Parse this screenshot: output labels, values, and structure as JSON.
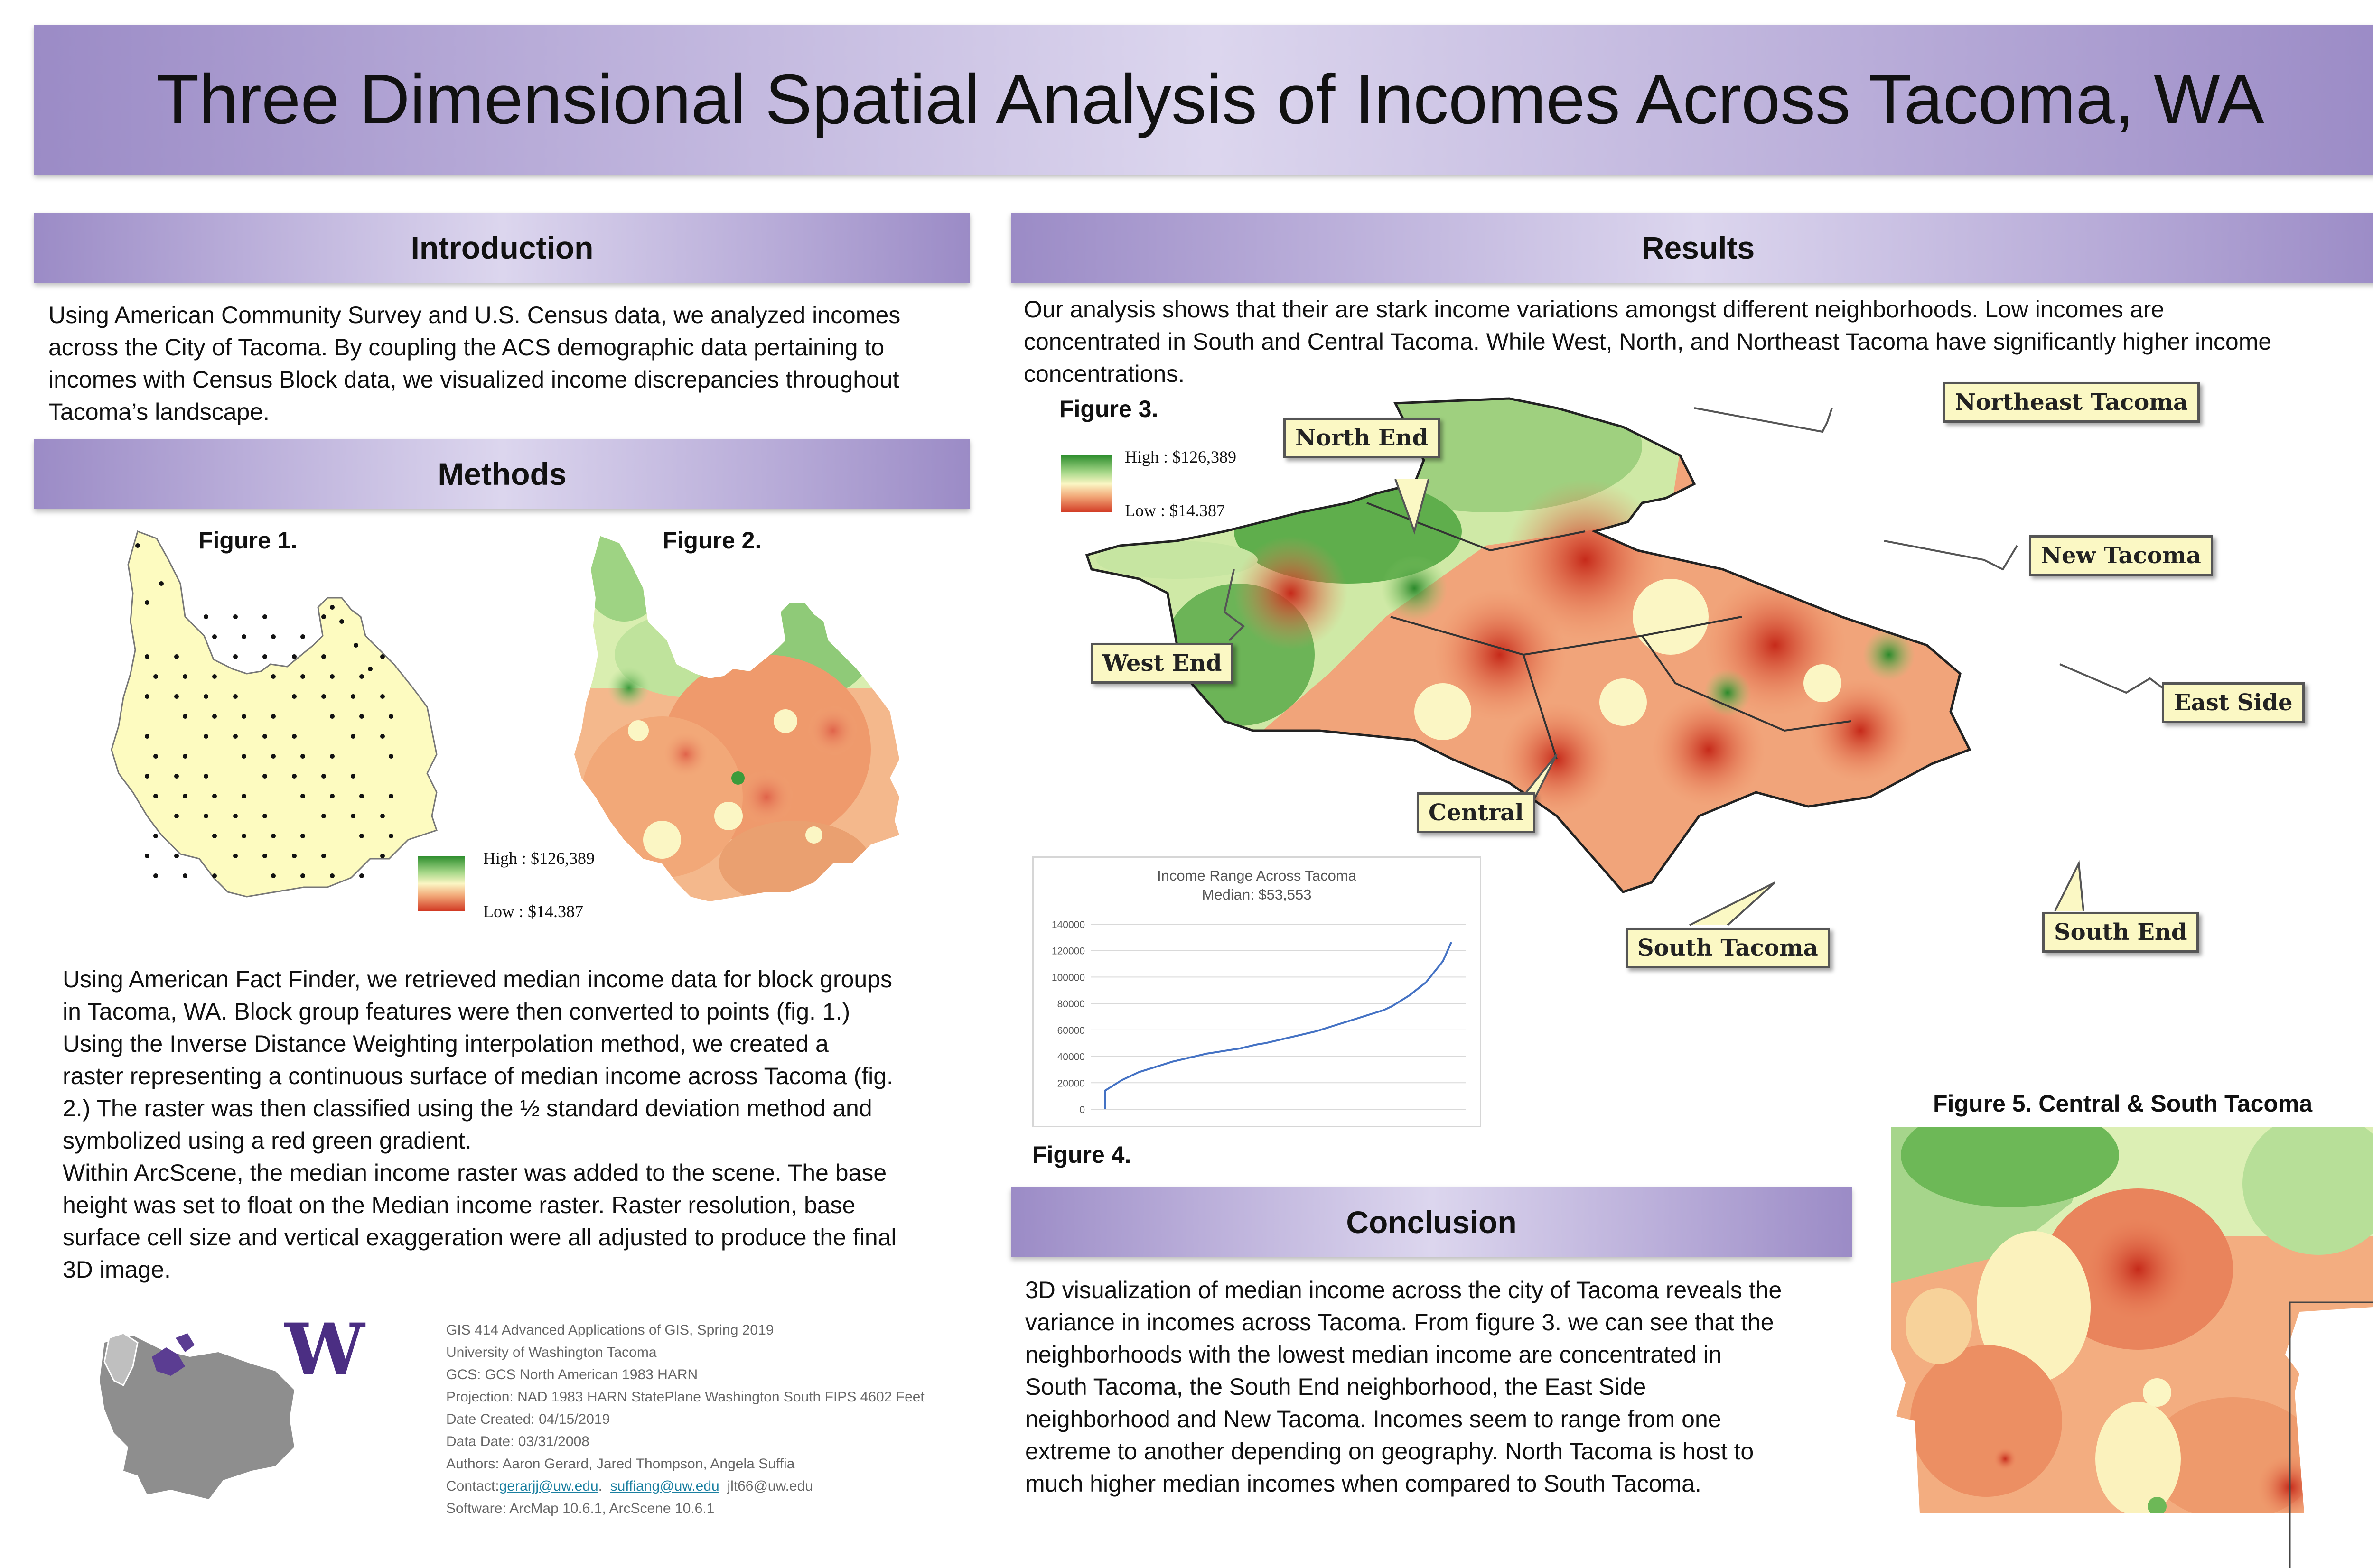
{
  "header": {
    "title": "Three Dimensional Spatial Analysis of Incomes Across Tacoma, WA"
  },
  "sections": {
    "introduction": "Introduction",
    "methods": "Methods",
    "results": "Results",
    "conclusion": "Conclusion"
  },
  "introduction_text": [
    "Using American Community Survey and U.S. Census data, we analyzed incomes",
    "across the City of Tacoma.  By coupling the ACS demographic data pertaining to",
    "incomes with Census Block data, we visualized income discrepancies throughout",
    "Tacoma’s landscape."
  ],
  "methods_text": [
    "Using American Fact Finder, we retrieved median income data for block groups",
    "in Tacoma, WA. Block group features were then converted to points (fig. 1.)",
    "Using the Inverse Distance Weighting interpolation method, we created a",
    "raster representing a continuous surface of median income across Tacoma (fig.",
    "2.) The raster was then classified using the ½ standard deviation method and",
    "symbolized using a red green gradient.",
    "Within ArcScene, the median income raster was added to the scene. The base",
    "height was set to float on the Median income raster. Raster resolution, base",
    "surface cell size and vertical exaggeration were all adjusted to produce the final",
    "3D image."
  ],
  "results_text": [
    "Our analysis shows that their are stark income variations amongst different neighborhoods. Low incomes are",
    "concentrated in South and Central Tacoma. While West, North, and Northeast Tacoma have significantly higher income",
    "concentrations."
  ],
  "conclusion_text": [
    "3D visualization of median income across the city of Tacoma reveals the",
    "variance in incomes across Tacoma. From figure 3. we can see that the",
    "neighborhoods with the lowest median income are concentrated in",
    "South Tacoma, the South End neighborhood, the East Side",
    "neighborhood and New Tacoma. Incomes seem to range from one",
    "extreme to another depending on geography. North Tacoma is host to",
    "much higher median incomes when compared to South Tacoma."
  ],
  "figures": {
    "fig1": "Figure 1.",
    "fig2": "Figure 2.",
    "fig3": "Figure 3.",
    "fig4": "Figure 4.",
    "fig5": "Figure 5. Central & South Tacoma"
  },
  "legend": {
    "high": "High : $126,389",
    "low": "Low : $14.387"
  },
  "neighborhoods": {
    "north_end": "North End",
    "northeast_tacoma": "Northeast Tacoma",
    "new_tacoma": "New Tacoma",
    "west_end": "West End",
    "east_side": "East Side",
    "central": "Central",
    "south_tacoma": "South Tacoma",
    "south_end": "South End"
  },
  "logo": {
    "letter": "W"
  },
  "credits": {
    "line1": "GIS 414 Advanced Applications of GIS, Spring 2019",
    "line2": "University of Washington Tacoma",
    "line3": "GCS: GCS North American 1983 HARN",
    "line4": "Projection: NAD 1983 HARN StatePlane Washington South FIPS 4602 Feet",
    "line5": "Date Created: 04/15/2019",
    "line6": "Data Date:  03/31/2008",
    "line7": "Authors: Aaron Gerard, Jared Thompson, Angela Suffia",
    "contact_label": "Contact:",
    "email1": "gerarjj@uw.edu",
    "sep": ".",
    "email2": "suffiang@uw.edu",
    "email3": "jlt66@uw.edu",
    "line9": "Software: ArcMap 10.6.1, ArcScene 10.6.1"
  },
  "colors": {
    "band_purple": "#9b8bc6",
    "band_light": "#dcd6ee",
    "line_blue": "#4472c4",
    "high_green": "#2f8f2f",
    "low_red": "#d23a24"
  },
  "chart_data": {
    "type": "line",
    "title": "Income Range Across Tacoma",
    "subtitle": "Median: $53,553",
    "xlabel": "",
    "ylabel": "",
    "ylim": [
      0,
      140000
    ],
    "y_ticks": [
      "0",
      "20000",
      "40000",
      "60000",
      "80000",
      "100000",
      "120000",
      "140000"
    ],
    "grid": true,
    "series": [
      {
        "values": [
          14000,
          18000,
          22000,
          25000,
          28000,
          30000,
          32000,
          34000,
          36000,
          37500,
          39000,
          40500,
          42000,
          43000,
          44000,
          45000,
          46000,
          47500,
          49000,
          50000,
          51500,
          53000,
          54500,
          56000,
          57500,
          59000,
          61000,
          63000,
          65000,
          67000,
          69000,
          71000,
          73000,
          75000,
          78000,
          82000,
          86000,
          91000,
          96000,
          104000,
          112000,
          126389
        ]
      }
    ]
  }
}
